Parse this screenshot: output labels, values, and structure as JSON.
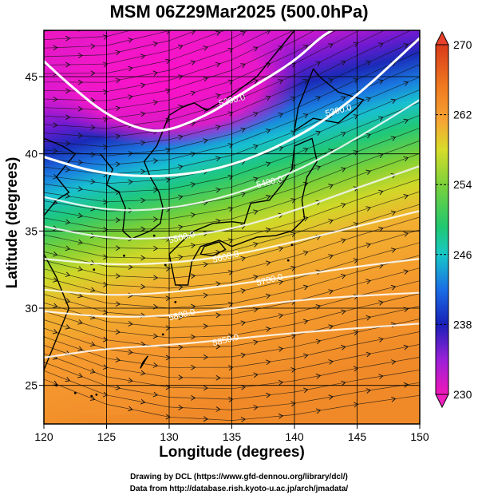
{
  "title": "MSM 06Z29Mar2025 (500.0hPa)",
  "xlabel": "Longitude (degrees)",
  "ylabel": "Latitude  (degrees)",
  "credit_line1": "Drawing by DCL (https://www.gfd-dennou.org/library/dcl/)",
  "credit_line2": "Data from http://database.rish.kyoto-u.ac.jp/arch/jmadata/",
  "chart_data": {
    "type": "heatmap",
    "description_variable": "temperature shading with geopotential height contours and wind streamlines",
    "xlim": [
      120,
      150
    ],
    "ylim": [
      22.5,
      48
    ],
    "x_ticks": [
      "120",
      "125",
      "130",
      "135",
      "140",
      "145",
      "150"
    ],
    "y_ticks": [
      "25",
      "30",
      "35",
      "40",
      "45"
    ],
    "colorbar": {
      "range": [
        230,
        270
      ],
      "tick_labels": [
        "270",
        "262",
        "254",
        "246",
        "238",
        "230"
      ]
    },
    "contours": [
      {
        "label": "5200.0",
        "points": [
          [
            120,
            46
          ],
          [
            122,
            44.5
          ],
          [
            125,
            42.5
          ],
          [
            128,
            41.5
          ],
          [
            130,
            41.5
          ],
          [
            133,
            42.5
          ],
          [
            135,
            43.5
          ],
          [
            137,
            44.5
          ],
          [
            140,
            46
          ],
          [
            142,
            47.5
          ],
          [
            143,
            48
          ]
        ]
      },
      {
        "label": "5300.0",
        "points": [
          [
            120,
            39.8
          ],
          [
            124,
            38.8
          ],
          [
            128,
            38.5
          ],
          [
            132,
            38.7
          ],
          [
            136,
            39.5
          ],
          [
            140,
            41
          ],
          [
            143,
            42.5
          ],
          [
            146,
            44.5
          ],
          [
            148,
            46
          ],
          [
            150,
            47.5
          ]
        ]
      },
      {
        "label": "5400.0",
        "points": [
          [
            120,
            37.2
          ],
          [
            125,
            36.3
          ],
          [
            130,
            36.4
          ],
          [
            135,
            37.3
          ],
          [
            140,
            38.8
          ],
          [
            145,
            41
          ],
          [
            150,
            43.5
          ]
        ]
      },
      {
        "label": "5500.0",
        "points": [
          [
            120,
            35.3
          ],
          [
            125,
            34.5
          ],
          [
            130,
            34.5
          ],
          [
            135,
            35.1
          ],
          [
            140,
            36.3
          ],
          [
            145,
            37.8
          ],
          [
            150,
            39.2
          ]
        ]
      },
      {
        "label": "5600.0",
        "points": [
          [
            120,
            33.2
          ],
          [
            125,
            32.8
          ],
          [
            130,
            32.9
          ],
          [
            135,
            33.4
          ],
          [
            140,
            34.3
          ],
          [
            145,
            35.3
          ],
          [
            150,
            36.3
          ]
        ]
      },
      {
        "label": "5700.0",
        "points": [
          [
            120,
            31.2
          ],
          [
            125,
            30.8
          ],
          [
            130,
            31.0
          ],
          [
            135,
            31.5
          ],
          [
            140,
            32.1
          ],
          [
            145,
            32.7
          ],
          [
            150,
            33.2
          ]
        ]
      },
      {
        "label": "5800.0",
        "points": [
          [
            120,
            29.8
          ],
          [
            125,
            29.4
          ],
          [
            130,
            29.5
          ],
          [
            135,
            30.0
          ],
          [
            140,
            30.5
          ],
          [
            145,
            30.8
          ],
          [
            150,
            31.0
          ]
        ]
      },
      {
        "label": "5850.0",
        "points": [
          [
            120,
            26.8
          ],
          [
            125,
            27.4
          ],
          [
            130,
            27.6
          ],
          [
            135,
            28.0
          ],
          [
            140,
            28.4
          ],
          [
            145,
            28.7
          ],
          [
            150,
            29.0
          ]
        ]
      }
    ]
  }
}
